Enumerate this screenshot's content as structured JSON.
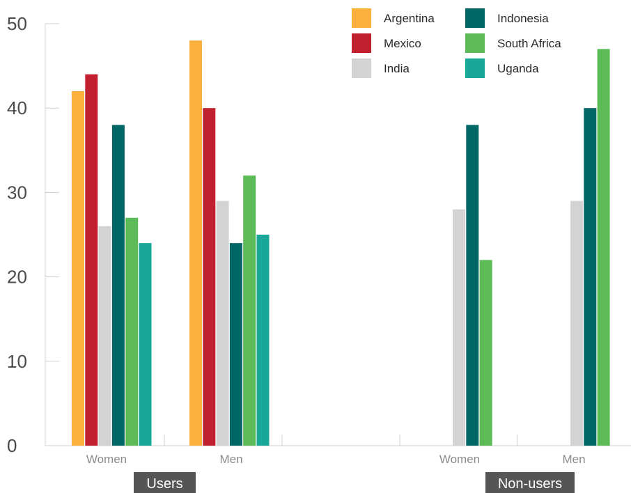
{
  "chart_data": {
    "type": "bar",
    "title": "",
    "xlabel": "",
    "ylabel": "",
    "ylim": [
      0,
      50
    ],
    "yticks": [
      0,
      10,
      20,
      30,
      40,
      50
    ],
    "grid": false,
    "legend_position": "top-right",
    "groups": [
      {
        "label": "Users",
        "categories": [
          "Women",
          "Men"
        ]
      },
      {
        "label": "Non-users",
        "categories": [
          "Women",
          "Men"
        ]
      }
    ],
    "categories": [
      "Women",
      "Men",
      "Women",
      "Men"
    ],
    "series": [
      {
        "name": "Argentina",
        "color": "#FBB03B",
        "values": [
          42,
          48,
          null,
          null
        ]
      },
      {
        "name": "Mexico",
        "color": "#C1202F",
        "values": [
          44,
          40,
          null,
          null
        ]
      },
      {
        "name": "India",
        "color": "#D3D3D3",
        "values": [
          26,
          29,
          28,
          29
        ]
      },
      {
        "name": "Indonesia",
        "color": "#006666",
        "values": [
          38,
          24,
          38,
          40
        ]
      },
      {
        "name": "South Africa",
        "color": "#5DBB57",
        "values": [
          27,
          32,
          22,
          47
        ]
      },
      {
        "name": "Uganda",
        "color": "#17A89A",
        "values": [
          24,
          25,
          null,
          null
        ]
      }
    ]
  }
}
